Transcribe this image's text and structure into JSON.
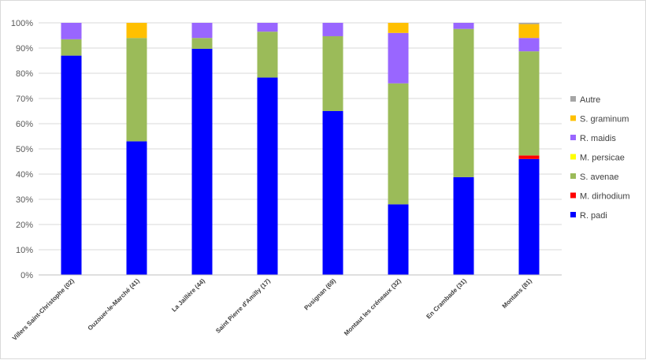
{
  "chart_data": {
    "type": "bar",
    "stacked": true,
    "percent": true,
    "title": "",
    "xlabel": "",
    "ylabel": "",
    "ylim": [
      0,
      100
    ],
    "yticks": [
      "0%",
      "10%",
      "20%",
      "30%",
      "40%",
      "50%",
      "60%",
      "70%",
      "80%",
      "90%",
      "100%"
    ],
    "grid": true,
    "legend_position": "right",
    "categories": [
      "Villers Saint-Christophe (02)",
      "Ouzouer-le-Marché (41)",
      "La Jaillère (44)",
      "Saint Pierre d'Amilly (17)",
      "Pusignan (69)",
      "Montaut les créneaux (32)",
      "En Crambade (31)",
      "Montans (81)"
    ],
    "series": [
      {
        "name": "R. padi",
        "color": "#0000ff",
        "values": [
          87,
          53,
          89.7,
          78.3,
          65,
          28,
          38.8,
          46
        ]
      },
      {
        "name": "M. dirhodium",
        "color": "#ff0000",
        "values": [
          0,
          0,
          0,
          0,
          0,
          0,
          0,
          1.4
        ]
      },
      {
        "name": "S. avenae",
        "color": "#9bbb59",
        "values": [
          6.5,
          41,
          4.3,
          18.2,
          29.7,
          48,
          58.8,
          41.3
        ]
      },
      {
        "name": "M. persicae",
        "color": "#ffff00",
        "values": [
          0,
          0,
          0,
          0,
          0,
          0,
          0,
          0
        ]
      },
      {
        "name": "R. maidis",
        "color": "#9966ff",
        "values": [
          6.5,
          0,
          6,
          3.5,
          5.3,
          20,
          2.4,
          5.3
        ]
      },
      {
        "name": "S. graminum",
        "color": "#ffc000",
        "values": [
          0,
          6,
          0,
          0,
          0,
          4,
          0,
          5.5
        ]
      },
      {
        "name": "Autre",
        "color": "#a5a5a5",
        "values": [
          0,
          0,
          0,
          0,
          0,
          0,
          0,
          0.5
        ]
      }
    ],
    "legend_order": [
      "Autre",
      "S. graminum",
      "R. maidis",
      "M. persicae",
      "S. avenae",
      "M. dirhodium",
      "R. padi"
    ]
  }
}
